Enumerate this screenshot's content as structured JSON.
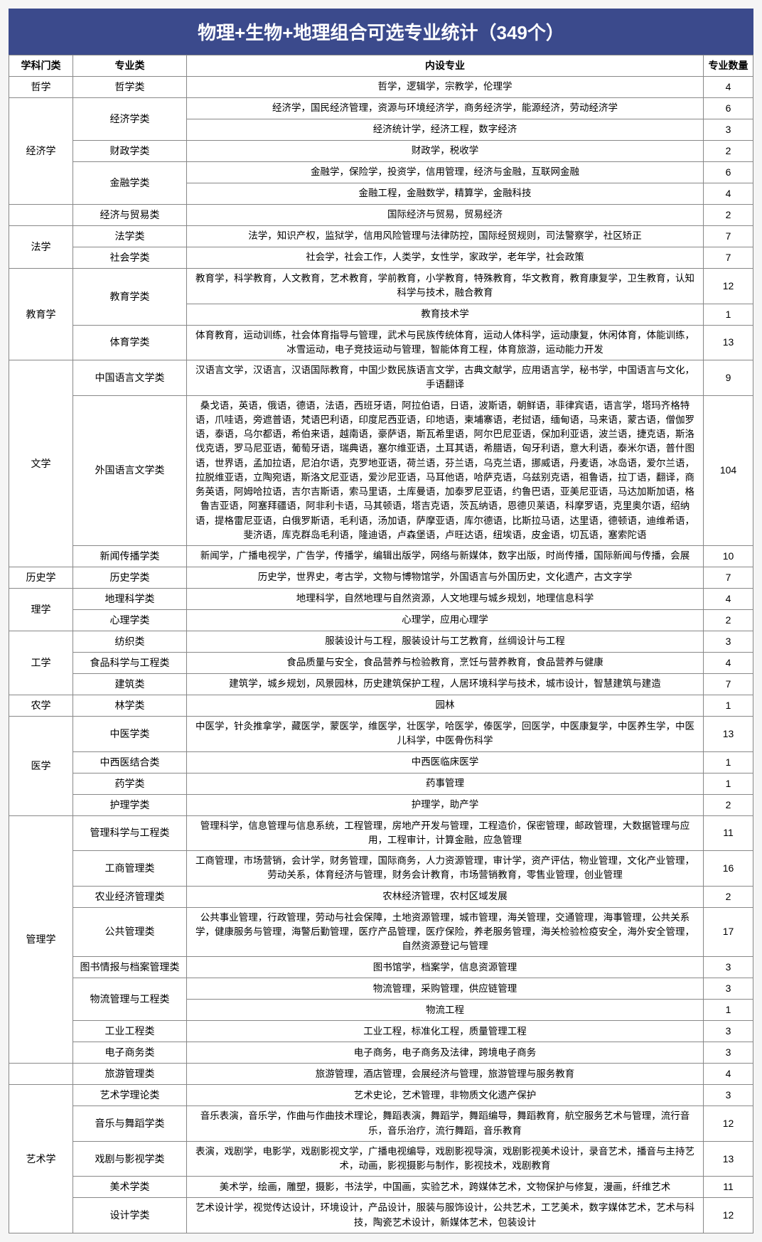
{
  "title": "物理+生物+地理组合可选专业统计（349个）",
  "headers": {
    "category": "学科门类",
    "subcategory": "专业类",
    "content": "内设专业",
    "count": "专业数量"
  },
  "rows": [
    {
      "cat": "哲学",
      "catRowspan": 1,
      "sub": "哲学类",
      "subRowspan": 1,
      "content": "哲学，逻辑学，宗教学，伦理学",
      "count": 4
    },
    {
      "cat": "经济学",
      "catRowspan": 5,
      "sub": "经济学类",
      "subRowspan": 2,
      "content": "经济学，国民经济管理，资源与环境经济学，商务经济学，能源经济，劳动经济学",
      "count": 6
    },
    {
      "content": "经济统计学，经济工程，数字经济",
      "count": 3
    },
    {
      "sub": "财政学类",
      "subRowspan": 1,
      "content": "财政学，税收学",
      "count": 2
    },
    {
      "sub": "金融学类",
      "subRowspan": 2,
      "content": "金融学，保险学，投资学，信用管理，经济与金融，互联网金融",
      "count": 6
    },
    {
      "content": "金融工程，金融数学，精算学，金融科技",
      "count": 4
    },
    {
      "cat": "",
      "catRowspan": 1,
      "sub": "经济与贸易类",
      "subRowspan": 1,
      "content": "国际经济与贸易，贸易经济",
      "count": 2
    },
    {
      "cat": "法学",
      "catRowspan": 2,
      "sub": "法学类",
      "subRowspan": 1,
      "content": "法学，知识产权，监狱学，信用风险管理与法律防控，国际经贸规则，司法警察学，社区矫正",
      "count": 7
    },
    {
      "sub": "社会学类",
      "subRowspan": 1,
      "content": "社会学，社会工作，人类学，女性学，家政学，老年学，社会政策",
      "count": 7
    },
    {
      "cat": "教育学",
      "catRowspan": 3,
      "sub": "教育学类",
      "subRowspan": 2,
      "content": "教育学，科学教育，人文教育，艺术教育，学前教育，小学教育，特殊教育，华文教育，教育康复学，卫生教育，认知科学与技术，融合教育",
      "count": 12
    },
    {
      "content": "教育技术学",
      "count": 1
    },
    {
      "sub": "体育学类",
      "subRowspan": 1,
      "content": "体育教育，运动训练，社会体育指导与管理，武术与民族传统体育，运动人体科学，运动康复，休闲体育，体能训练，冰雪运动，电子竞技运动与管理，智能体育工程，体育旅游，运动能力开发",
      "count": 13
    },
    {
      "cat": "文学",
      "catRowspan": 3,
      "sub": "中国语言文学类",
      "subRowspan": 1,
      "content": "汉语言文学，汉语言，汉语国际教育，中国少数民族语言文学，古典文献学，应用语言学，秘书学，中国语言与文化，手语翻译",
      "count": 9
    },
    {
      "sub": "外国语言文学类",
      "subRowspan": 1,
      "content": "桑戈语，英语，俄语，德语，法语，西班牙语，阿拉伯语，日语，波斯语，朝鲜语，菲律宾语，语言学，塔玛齐格特语，爪哇语，旁遮普语，梵语巴利语，印度尼西亚语，印地语，柬埔寨语，老挝语，缅甸语，马来语，蒙古语，僧伽罗语，泰语，乌尔都语，希伯来语，越南语，豪萨语，斯瓦希里语，阿尔巴尼亚语，保加利亚语，波兰语，捷克语，斯洛伐克语，罗马尼亚语，葡萄牙语，瑞典语，塞尔维亚语，土耳其语，希腊语，匈牙利语，意大利语，泰米尔语，普什图语，世界语，孟加拉语，尼泊尔语，克罗地亚语，荷兰语，芬兰语，乌克兰语，挪威语，丹麦语，冰岛语，爱尔兰语，拉脱维亚语，立陶宛语，斯洛文尼亚语，爱沙尼亚语，马耳他语，哈萨克语，乌兹别克语，祖鲁语，拉丁语，翻译，商务英语，阿姆哈拉语，吉尔吉斯语，索马里语，土库曼语，加泰罗尼亚语，约鲁巴语，亚美尼亚语，马达加斯加语，格鲁吉亚语，阿塞拜疆语，阿非利卡语，马其顿语，塔吉克语，茨瓦纳语，恩德贝莱语，科摩罗语，克里奥尔语，绍纳语，提格雷尼亚语，白俄罗斯语，毛利语，汤加语，萨摩亚语，库尔德语，比斯拉马语，达里语，德顿语，迪维希语，斐济语，库克群岛毛利语，隆迪语，卢森堡语，卢旺达语，纽埃语，皮金语，切瓦语，塞索陀语",
      "count": 104
    },
    {
      "sub": "新闻传播学类",
      "subRowspan": 1,
      "content": "新闻学，广播电视学，广告学，传播学，编辑出版学，网络与新媒体，数字出版，时尚传播，国际新闻与传播，会展",
      "count": 10
    },
    {
      "cat": "历史学",
      "catRowspan": 1,
      "sub": "历史学类",
      "subRowspan": 1,
      "content": "历史学，世界史，考古学，文物与博物馆学，外国语言与外国历史，文化遗产，古文字学",
      "count": 7
    },
    {
      "cat": "理学",
      "catRowspan": 2,
      "sub": "地理科学类",
      "subRowspan": 1,
      "content": "地理科学，自然地理与自然资源，人文地理与城乡规划，地理信息科学",
      "count": 4
    },
    {
      "sub": "心理学类",
      "subRowspan": 1,
      "content": "心理学，应用心理学",
      "count": 2
    },
    {
      "cat": "工学",
      "catRowspan": 3,
      "sub": "纺织类",
      "subRowspan": 1,
      "content": "服装设计与工程，服装设计与工艺教育，丝绸设计与工程",
      "count": 3
    },
    {
      "sub": "食品科学与工程类",
      "subRowspan": 1,
      "content": "食品质量与安全，食品营养与检验教育，烹饪与营养教育，食品营养与健康",
      "count": 4
    },
    {
      "sub": "建筑类",
      "subRowspan": 1,
      "content": "建筑学，城乡规划，风景园林，历史建筑保护工程，人居环境科学与技术，城市设计，智慧建筑与建造",
      "count": 7
    },
    {
      "cat": "农学",
      "catRowspan": 1,
      "sub": "林学类",
      "subRowspan": 1,
      "content": "园林",
      "count": 1
    },
    {
      "cat": "医学",
      "catRowspan": 4,
      "sub": "中医学类",
      "subRowspan": 1,
      "content": "中医学，针灸推拿学，藏医学，蒙医学，维医学，壮医学，哈医学，傣医学，回医学，中医康复学，中医养生学，中医儿科学，中医骨伤科学",
      "count": 13
    },
    {
      "sub": "中西医结合类",
      "subRowspan": 1,
      "content": "中西医临床医学",
      "count": 1
    },
    {
      "sub": "药学类",
      "subRowspan": 1,
      "content": "药事管理",
      "count": 1
    },
    {
      "sub": "护理学类",
      "subRowspan": 1,
      "content": "护理学，助产学",
      "count": 2
    },
    {
      "cat": "管理学",
      "catRowspan": 9,
      "sub": "管理科学与工程类",
      "subRowspan": 1,
      "content": "管理科学，信息管理与信息系统，工程管理，房地产开发与管理，工程造价，保密管理，邮政管理，大数据管理与应用，工程审计，计算金融，应急管理",
      "count": 11
    },
    {
      "sub": "工商管理类",
      "subRowspan": 1,
      "content": "工商管理，市场营销，会计学，财务管理，国际商务，人力资源管理，审计学，资产评估，物业管理，文化产业管理，劳动关系，体育经济与管理，财务会计教育，市场营销教育，零售业管理，创业管理",
      "count": 16
    },
    {
      "sub": "农业经济管理类",
      "subRowspan": 1,
      "content": "农林经济管理，农村区域发展",
      "count": 2
    },
    {
      "sub": "公共管理类",
      "subRowspan": 1,
      "content": "公共事业管理，行政管理，劳动与社会保障，土地资源管理，城市管理，海关管理，交通管理，海事管理，公共关系学，健康服务与管理，海警后勤管理，医疗产品管理，医疗保险，养老服务管理，海关检验检疫安全，海外安全管理，自然资源登记与管理",
      "count": 17
    },
    {
      "sub": "图书情报与档案管理类",
      "subRowspan": 1,
      "content": "图书馆学，档案学，信息资源管理",
      "count": 3
    },
    {
      "sub": "物流管理与工程类",
      "subRowspan": 2,
      "content": "物流管理，采购管理，供应链管理",
      "count": 3
    },
    {
      "content": "物流工程",
      "count": 1
    },
    {
      "sub": "工业工程类",
      "subRowspan": 1,
      "content": "工业工程，标准化工程，质量管理工程",
      "count": 3
    },
    {
      "sub": "电子商务类",
      "subRowspan": 1,
      "content": "电子商务，电子商务及法律，跨境电子商务",
      "count": 3
    },
    {
      "cat": "",
      "catRowspan": 1,
      "sub": "旅游管理类",
      "subRowspan": 1,
      "content": "旅游管理，酒店管理，会展经济与管理，旅游管理与服务教育",
      "count": 4
    },
    {
      "cat": "艺术学",
      "catRowspan": 5,
      "sub": "艺术学理论类",
      "subRowspan": 1,
      "content": "艺术史论，艺术管理，非物质文化遗产保护",
      "count": 3
    },
    {
      "sub": "音乐与舞蹈学类",
      "subRowspan": 1,
      "content": "音乐表演，音乐学，作曲与作曲技术理论，舞蹈表演，舞蹈学，舞蹈编导，舞蹈教育，航空服务艺术与管理，流行音乐，音乐治疗，流行舞蹈，音乐教育",
      "count": 12
    },
    {
      "sub": "戏剧与影视学类",
      "subRowspan": 1,
      "content": "表演，戏剧学，电影学，戏剧影视文学，广播电视编导，戏剧影视导演，戏剧影视美术设计，录音艺术，播音与主持艺术，动画，影视摄影与制作，影视技术，戏剧教育",
      "count": 13
    },
    {
      "sub": "美术学类",
      "subRowspan": 1,
      "content": "美术学，绘画，雕塑，摄影，书法学，中国画，实验艺术，跨媒体艺术，文物保护与修复，漫画，纤维艺术",
      "count": 11
    },
    {
      "sub": "设计学类",
      "subRowspan": 1,
      "content": "艺术设计学，视觉传达设计，环境设计，产品设计，服装与服饰设计，公共艺术，工艺美术，数字媒体艺术，艺术与科技，陶瓷艺术设计，新媒体艺术，包装设计",
      "count": 12
    }
  ]
}
